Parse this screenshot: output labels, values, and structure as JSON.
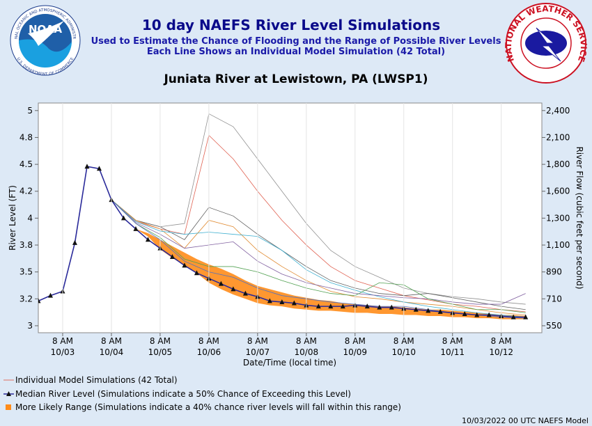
{
  "header": {
    "ring_top": "NATIONAL OCEANIC AND ATMOSPHERIC ADMINISTRATION",
    "ring_bottom": "U.S. DEPARTMENT OF COMMERCE",
    "noaa": "NOAA",
    "nws": "NATIONAL WEATHER SERVICE"
  },
  "chart_data": {
    "type": "line",
    "title": "10 day NAEFS River Level Simulations",
    "subtitles": [
      "Used to Estimate the Chance of Flooding and the Range of Possible River Levels",
      "Each Line Shows an Individual Model Simulation (42 Total)"
    ],
    "location": "Juniata River at Lewistown, PA (LWSP1)",
    "xlabel": "Date/Time (local time)",
    "ylabel": "River Level (FT)",
    "y2label": "River Flow (cubic feet per second)",
    "footer": "10/03/2022 00 UTC NAEFS Model",
    "xlim": [
      "10/02 20:00",
      "10/13 04:00"
    ],
    "xticks": [
      {
        "value": "10/03 08:00",
        "label": "8 AM\n10/03"
      },
      {
        "value": "10/04 08:00",
        "label": "8 AM\n10/04"
      },
      {
        "value": "10/05 08:00",
        "label": "8 AM\n10/05"
      },
      {
        "value": "10/06 08:00",
        "label": "8 AM\n10/06"
      },
      {
        "value": "10/07 08:00",
        "label": "8 AM\n10/07"
      },
      {
        "value": "10/08 08:00",
        "label": "8 AM\n10/08"
      },
      {
        "value": "10/09 08:00",
        "label": "8 AM\n10/09"
      },
      {
        "value": "10/10 08:00",
        "label": "8 AM\n10/10"
      },
      {
        "value": "10/11 08:00",
        "label": "8 AM\n10/11"
      },
      {
        "value": "10/12 08:00",
        "label": "8 AM\n10/12"
      }
    ],
    "ylim": [
      2.935,
      5.07
    ],
    "yticks": [
      3.0,
      {
        "value": 3.25,
        "label": "3.2"
      },
      3.5,
      {
        "value": 3.75,
        "label": "3.8"
      },
      4.0,
      {
        "value": 4.25,
        "label": "4.2"
      },
      4.5,
      {
        "value": 4.75,
        "label": "4.8"
      },
      5.0
    ],
    "y2ticks": [
      550,
      710,
      890,
      {
        "value": 1100,
        "label": "1,100"
      },
      {
        "value": 1300,
        "label": "1,300"
      },
      {
        "value": 1600,
        "label": "1,600"
      },
      {
        "value": 1800,
        "label": "1,800"
      },
      {
        "value": 2100,
        "label": "2,100"
      },
      {
        "value": 2400,
        "label": "2,400"
      }
    ],
    "grid": "x",
    "x": [
      "10/02 20:00",
      "10/03 02:00",
      "10/03 08:00",
      "10/03 14:00",
      "10/03 20:00",
      "10/04 02:00",
      "10/04 08:00",
      "10/04 14:00",
      "10/04 20:00",
      "10/05 02:00",
      "10/05 08:00",
      "10/05 14:00",
      "10/05 20:00",
      "10/06 02:00",
      "10/06 08:00",
      "10/06 14:00",
      "10/06 20:00",
      "10/07 02:00",
      "10/07 08:00",
      "10/07 14:00",
      "10/07 20:00",
      "10/08 02:00",
      "10/08 08:00",
      "10/08 14:00",
      "10/08 20:00",
      "10/09 02:00",
      "10/09 08:00",
      "10/09 14:00",
      "10/09 20:00",
      "10/10 02:00",
      "10/10 08:00",
      "10/10 14:00",
      "10/10 20:00",
      "10/11 02:00",
      "10/11 08:00",
      "10/11 14:00",
      "10/11 20:00",
      "10/12 02:00",
      "10/12 08:00",
      "10/12 14:00",
      "10/12 20:00"
    ],
    "members": {
      "name": "Individual Model Simulations (42 Total)",
      "color": "#e07060",
      "x": [
        "10/04 08:00",
        "10/04 20:00",
        "10/05 08:00",
        "10/05 20:00",
        "10/06 08:00",
        "10/06 20:00",
        "10/07 08:00",
        "10/07 20:00",
        "10/08 08:00",
        "10/08 20:00",
        "10/09 08:00",
        "10/09 20:00",
        "10/10 08:00",
        "10/10 20:00",
        "10/11 08:00",
        "10/11 20:00",
        "10/12 08:00",
        "10/12 20:00"
      ],
      "lines": [
        {
          "color": "#909090",
          "values": [
            4.17,
            3.98,
            3.92,
            3.95,
            4.97,
            4.85,
            4.55,
            4.25,
            3.95,
            3.7,
            3.55,
            3.45,
            3.35,
            3.3,
            3.27,
            3.25,
            3.22,
            3.2
          ]
        },
        {
          "color": "#e06050",
          "values": [
            4.17,
            3.97,
            3.9,
            3.85,
            4.77,
            4.55,
            4.25,
            3.98,
            3.75,
            3.55,
            3.42,
            3.35,
            3.28,
            3.24,
            3.2,
            3.18,
            3.15,
            3.13
          ]
        },
        {
          "color": "#606060",
          "values": [
            4.17,
            3.98,
            3.92,
            3.8,
            4.1,
            4.02,
            3.85,
            3.7,
            3.55,
            3.42,
            3.35,
            3.3,
            3.28,
            3.3,
            3.26,
            3.22,
            3.18,
            3.15
          ]
        },
        {
          "color": "#e08a30",
          "values": [
            4.17,
            3.98,
            3.9,
            3.72,
            3.98,
            3.92,
            3.7,
            3.55,
            3.42,
            3.32,
            3.27,
            3.25,
            3.22,
            3.2,
            3.18,
            3.15,
            3.12,
            3.1
          ]
        },
        {
          "color": "#40b0d0",
          "values": [
            4.17,
            3.97,
            3.88,
            3.85,
            3.87,
            3.85,
            3.83,
            3.7,
            3.52,
            3.4,
            3.33,
            3.27,
            3.22,
            3.18,
            3.15,
            3.12,
            3.1,
            3.08
          ]
        },
        {
          "color": "#8060a0",
          "values": [
            4.17,
            3.96,
            3.85,
            3.72,
            3.75,
            3.78,
            3.6,
            3.48,
            3.4,
            3.35,
            3.3,
            3.28,
            3.26,
            3.25,
            3.22,
            3.2,
            3.2,
            3.3
          ]
        },
        {
          "color": "#50a050",
          "values": [
            4.17,
            3.95,
            3.82,
            3.62,
            3.55,
            3.55,
            3.5,
            3.42,
            3.35,
            3.3,
            3.28,
            3.4,
            3.38,
            3.25,
            3.2,
            3.15,
            3.15,
            3.12
          ]
        },
        {
          "color": "#5070c0",
          "values": [
            4.17,
            3.95,
            3.8,
            3.6,
            3.5,
            3.45,
            3.35,
            3.28,
            3.25,
            3.22,
            3.2,
            3.18,
            3.18,
            3.15,
            3.12,
            3.1,
            3.08,
            3.07
          ]
        }
      ]
    },
    "range": {
      "name": "More Likely Range (Simulations indicate a 40% chance river levels will fall within this range)",
      "color": "#ff8c1a",
      "upper": [
        null,
        null,
        null,
        null,
        null,
        null,
        null,
        null,
        3.9,
        3.86,
        3.8,
        3.74,
        3.68,
        3.62,
        3.57,
        3.53,
        3.48,
        3.42,
        3.37,
        3.34,
        3.31,
        3.28,
        3.26,
        3.24,
        3.23,
        3.21,
        3.2,
        3.19,
        3.18,
        3.18,
        3.17,
        3.16,
        3.15,
        3.15,
        3.14,
        3.13,
        3.12,
        3.11,
        3.1,
        3.1,
        3.09
      ],
      "lower": [
        null,
        null,
        null,
        null,
        null,
        null,
        null,
        null,
        3.9,
        3.83,
        3.71,
        3.63,
        3.56,
        3.49,
        3.4,
        3.34,
        3.29,
        3.25,
        3.21,
        3.19,
        3.18,
        3.16,
        3.15,
        3.14,
        3.14,
        3.13,
        3.12,
        3.12,
        3.11,
        3.11,
        3.1,
        3.1,
        3.09,
        3.09,
        3.08,
        3.08,
        3.07,
        3.07,
        3.06,
        3.06,
        3.06
      ]
    },
    "series": [
      {
        "name": "Median River Level (Simulations indicate a 50% Chance of Exceeding this Level)",
        "color": "#2a2a9a",
        "values": [
          3.23,
          3.28,
          3.32,
          3.77,
          4.48,
          4.46,
          4.17,
          4.0,
          3.9,
          3.8,
          3.72,
          3.64,
          3.56,
          3.49,
          3.44,
          3.39,
          3.34,
          3.3,
          3.27,
          3.23,
          3.22,
          3.21,
          3.19,
          3.18,
          3.18,
          3.18,
          3.19,
          3.18,
          3.17,
          3.17,
          3.16,
          3.15,
          3.14,
          3.13,
          3.12,
          3.11,
          3.1,
          3.1,
          3.09,
          3.08,
          3.08
        ]
      }
    ]
  }
}
